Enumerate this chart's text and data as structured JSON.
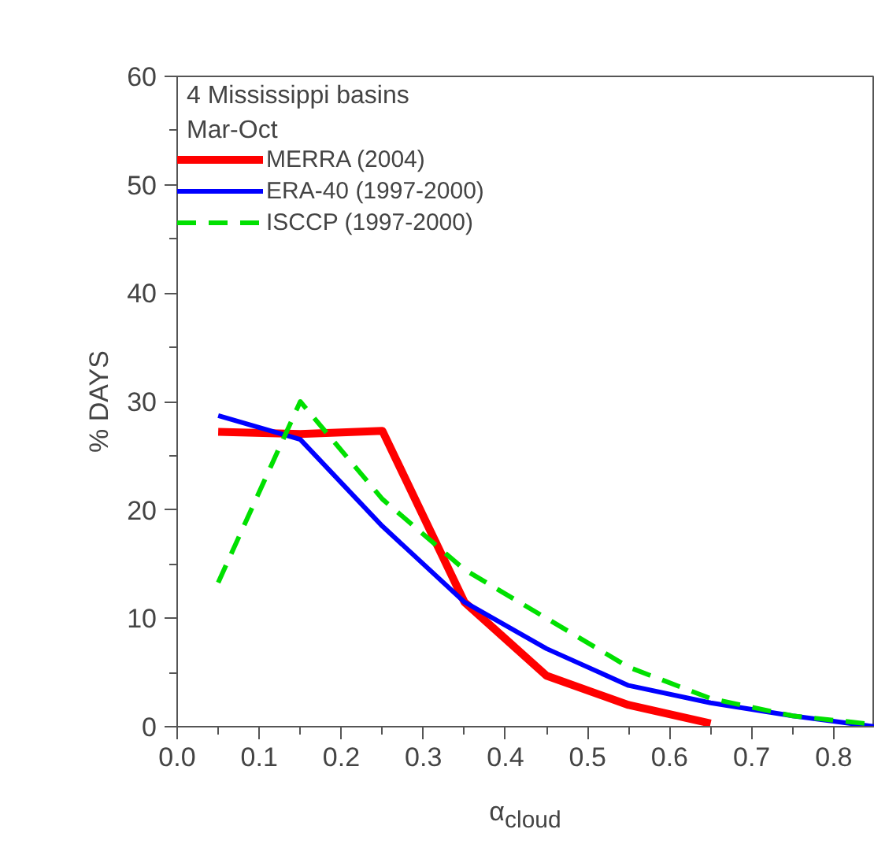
{
  "chart_data": {
    "type": "line",
    "xlabel": "α$_{cloud}$",
    "ylabel": "% DAYS",
    "annotations": [
      "4 Mississippi basins",
      "Mar-Oct"
    ],
    "xlim": [
      0,
      0.85
    ],
    "ylim": [
      0,
      60
    ],
    "xticks": [
      {
        "value": 0,
        "label": "0.0"
      },
      0.1,
      0.2,
      0.3,
      0.4,
      0.5,
      0.6,
      0.7,
      0.8
    ],
    "yticks": [
      0,
      10,
      20,
      30,
      40,
      50,
      60
    ],
    "grid": false,
    "legend": "top left",
    "line_style": "solid",
    "series": [
      {
        "name": "MERRA (2004)",
        "color": "#ff0000",
        "x": [
          0.05,
          0.15,
          0.25,
          0.35,
          0.45,
          0.55,
          0.65
        ],
        "values": [
          27.2,
          27,
          27.3,
          11.5,
          4.7,
          2,
          0.3
        ]
      },
      {
        "name": "ERA-40 (1997-2000)",
        "color": "#0000ff",
        "x": [
          0.05,
          0.15,
          0.25,
          0.35,
          0.45,
          0.55,
          0.65,
          0.75,
          0.85
        ],
        "values": [
          28.7,
          26.5,
          18.5,
          11.5,
          7.2,
          3.8,
          2.2,
          1,
          0
        ]
      },
      {
        "name": "ISCCP (1997-2000)",
        "color": "#00e000",
        "line_style": "dashed",
        "x": [
          0.05,
          0.15,
          0.25,
          0.35,
          0.45,
          0.55,
          0.65,
          0.75,
          0.85
        ],
        "values": [
          13.3,
          30,
          21,
          14.5,
          10,
          5.5,
          2.6,
          1,
          0.2
        ]
      }
    ]
  }
}
